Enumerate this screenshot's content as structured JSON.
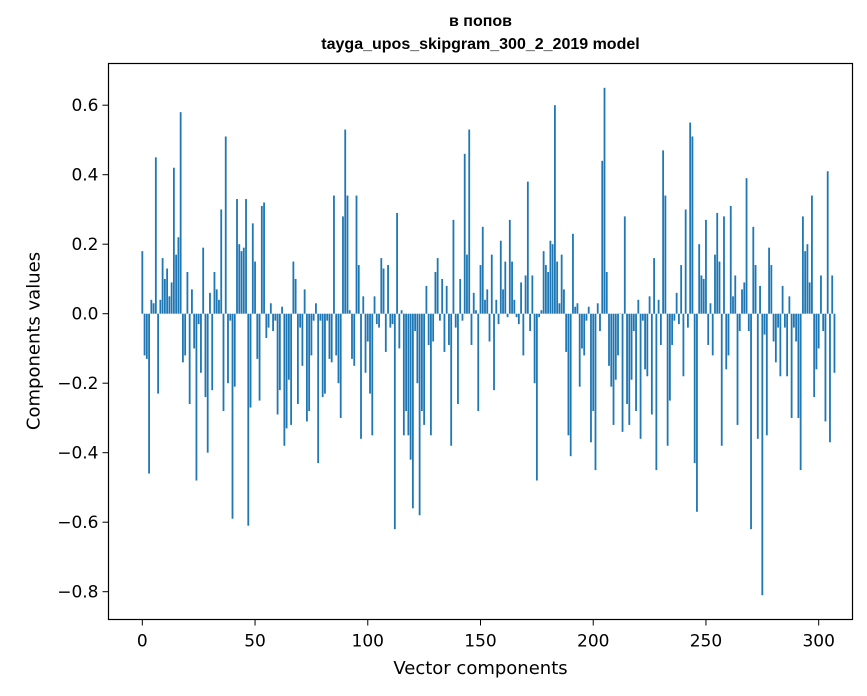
{
  "chart_data": {
    "type": "bar",
    "title": [
      "в попов",
      "tayga_upos_skipgram_300_2_2019 model"
    ],
    "xlabel": "Vector components",
    "ylabel": "Components values",
    "xlim": [
      -15,
      315
    ],
    "ylim": [
      -0.88,
      0.72
    ],
    "xticks": [
      0,
      50,
      100,
      150,
      200,
      250,
      300
    ],
    "xtick_labels": [
      "0",
      "50",
      "100",
      "150",
      "200",
      "250",
      "300"
    ],
    "yticks": [
      -0.8,
      -0.6,
      -0.4,
      -0.2,
      0.0,
      0.2,
      0.4,
      0.6
    ],
    "ytick_labels": [
      "−0.8",
      "−0.6",
      "−0.4",
      "−0.2",
      "0.0",
      "0.2",
      "0.4",
      "0.6"
    ],
    "bar_color": "#1f77b4",
    "values": [
      0.18,
      -0.12,
      -0.13,
      -0.46,
      0.04,
      0.03,
      0.45,
      -0.23,
      0.04,
      0.16,
      0.1,
      0.13,
      0.05,
      0.09,
      0.42,
      0.17,
      0.22,
      0.58,
      -0.14,
      -0.12,
      0.12,
      -0.26,
      0.07,
      -0.1,
      -0.48,
      -0.03,
      -0.17,
      0.19,
      -0.24,
      -0.4,
      0.06,
      -0.22,
      0.12,
      0.07,
      0.04,
      0.3,
      -0.28,
      0.51,
      -0.2,
      -0.02,
      -0.59,
      -0.21,
      0.33,
      0.2,
      0.18,
      0.19,
      0.33,
      -0.61,
      -0.27,
      0.26,
      0.15,
      -0.13,
      -0.25,
      0.31,
      0.32,
      -0.07,
      -0.04,
      0.03,
      -0.05,
      -0.02,
      -0.29,
      -0.22,
      0.02,
      -0.38,
      -0.33,
      -0.19,
      -0.32,
      0.15,
      0.1,
      -0.26,
      -0.04,
      -0.15,
      0.07,
      -0.31,
      -0.28,
      -0.12,
      -0.02,
      0.03,
      -0.43,
      -0.02,
      -0.24,
      -0.23,
      -0.02,
      -0.13,
      -0.14,
      0.34,
      -0.12,
      -0.2,
      -0.3,
      0.28,
      0.53,
      0.34,
      0.01,
      -0.13,
      -0.15,
      0.34,
      0.14,
      -0.36,
      0.05,
      -0.17,
      -0.08,
      -0.23,
      -0.35,
      0.05,
      -0.03,
      -0.04,
      0.16,
      0.13,
      -0.11,
      0.14,
      -0.04,
      -0.03,
      -0.62,
      0.29,
      -0.1,
      0.01,
      -0.35,
      -0.28,
      -0.35,
      -0.42,
      -0.56,
      -0.05,
      -0.2,
      -0.58,
      -0.28,
      -0.32,
      0.08,
      -0.09,
      -0.35,
      -0.08,
      0.12,
      0.16,
      -0.02,
      0.1,
      -0.11,
      0.08,
      -0.09,
      -0.38,
      0.27,
      -0.04,
      -0.26,
      0.1,
      -0.02,
      0.46,
      0.17,
      0.53,
      -0.09,
      0.06,
      0.01,
      -0.28,
      0.14,
      0.25,
      0.04,
      0.07,
      -0.08,
      0.17,
      -0.22,
      0.04,
      -0.03,
      0.21,
      0.07,
      0.15,
      -0.01,
      0.27,
      0.15,
      0.04,
      -0.01,
      -0.03,
      0.09,
      -0.12,
      0.11,
      0.38,
      -0.05,
      0.11,
      -0.2,
      -0.48,
      -0.01,
      0.01,
      0.18,
      0.14,
      0.12,
      0.21,
      0.2,
      0.6,
      0.15,
      0.03,
      0.17,
      0.07,
      -0.11,
      -0.35,
      -0.41,
      0.23,
      0.02,
      0.03,
      -0.21,
      -0.1,
      -0.12,
      -0.02,
      0.02,
      -0.37,
      -0.28,
      -0.45,
      0.03,
      -0.05,
      0.44,
      0.65,
      0.12,
      -0.15,
      -0.21,
      -0.32,
      -0.19,
      -0.12,
      0.0,
      -0.34,
      0.28,
      -0.26,
      -0.32,
      -0.19,
      -0.05,
      -0.28,
      0.04,
      -0.36,
      -0.02,
      -0.16,
      -0.18,
      0.05,
      -0.29,
      0.16,
      -0.45,
      0.04,
      -0.09,
      0.47,
      0.34,
      -0.38,
      -0.25,
      -0.09,
      -0.02,
      0.06,
      -0.03,
      0.14,
      -0.18,
      0.3,
      -0.04,
      0.55,
      0.51,
      -0.43,
      -0.57,
      0.2,
      0.11,
      0.1,
      0.27,
      -0.09,
      0.03,
      -0.12,
      0.17,
      0.29,
      0.15,
      -0.38,
      0.28,
      -0.16,
      -0.12,
      0.31,
      0.05,
      0.11,
      -0.32,
      -0.05,
      0.07,
      0.09,
      0.39,
      -0.05,
      -0.62,
      0.25,
      0.14,
      -0.36,
      0.08,
      -0.81,
      -0.06,
      -0.35,
      0.19,
      0.14,
      -0.08,
      -0.14,
      -0.04,
      -0.18,
      0.08,
      -0.04,
      -0.18,
      0.05,
      -0.3,
      -0.04,
      -0.08,
      -0.3,
      -0.45,
      0.28,
      0.18,
      0.2,
      0.09,
      0.34,
      -0.24,
      -0.16,
      -0.1,
      0.11,
      -0.05,
      -0.31,
      0.41,
      -0.37,
      0.11,
      -0.17
    ]
  }
}
